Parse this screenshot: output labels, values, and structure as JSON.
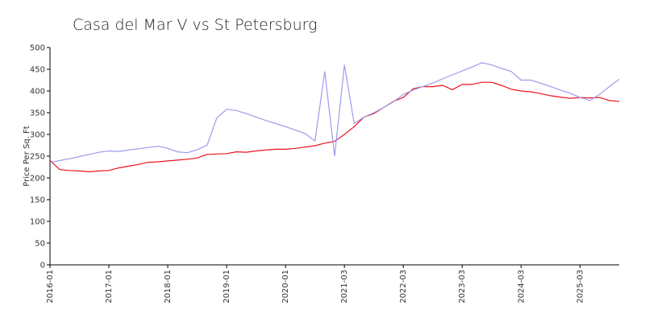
{
  "chart_data": {
    "type": "line",
    "title": "Casa del Mar V vs St Petersburg",
    "ylabel": "Price Per Sq. Ft",
    "categories": [
      "2016-01",
      null,
      null,
      null,
      null,
      null,
      "2017-01",
      null,
      null,
      null,
      null,
      null,
      "2018-01",
      null,
      null,
      null,
      null,
      null,
      "2019-01",
      null,
      null,
      null,
      null,
      null,
      "2020-01",
      null,
      null,
      null,
      null,
      null,
      "2021-03",
      null,
      null,
      null,
      null,
      null,
      "2022-03",
      null,
      null,
      null,
      null,
      null,
      "2023-03",
      null,
      null,
      null,
      null,
      null,
      "2024-03",
      null,
      null,
      null,
      null,
      null,
      "2025-03",
      null,
      null,
      null,
      null
    ],
    "series": [
      {
        "color": "#e8141e",
        "values": [
          240,
          219,
          217,
          216,
          214,
          216,
          217,
          223,
          227,
          231,
          236,
          237,
          239,
          241,
          243,
          246,
          254,
          255,
          256,
          260,
          259,
          262,
          264,
          266,
          266,
          268,
          271,
          274,
          280,
          284,
          300,
          318,
          340,
          348,
          362,
          376,
          385,
          405,
          410,
          410,
          413,
          403,
          415,
          415,
          420,
          420,
          413,
          404,
          400,
          398,
          394,
          389,
          386,
          383,
          385,
          384,
          385,
          378,
          376
        ]
      },
      {
        "color": "#9c9cec",
        "values": [
          235,
          240,
          244,
          249,
          254,
          259,
          262,
          261,
          264,
          267,
          270,
          273,
          268,
          260,
          258,
          265,
          275,
          338,
          358,
          355,
          348,
          340,
          332,
          325,
          318,
          310,
          302,
          285,
          445,
          250,
          460,
          325,
          340,
          350,
          362,
          375,
          392,
          402,
          410,
          418,
          428,
          437,
          446,
          455,
          465,
          460,
          452,
          445,
          425,
          425,
          418,
          410,
          402,
          395,
          385,
          378,
          392,
          410,
          427
        ]
      }
    ],
    "ylim": [
      0,
      500
    ],
    "yticks": [
      0,
      50,
      100,
      150,
      200,
      250,
      300,
      350,
      400,
      450,
      500
    ]
  }
}
